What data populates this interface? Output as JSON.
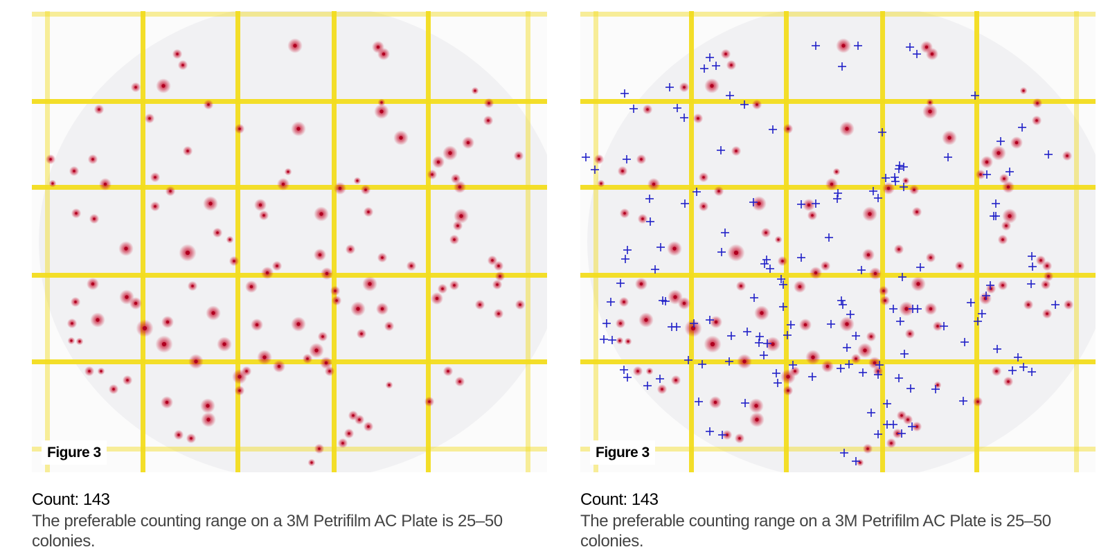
{
  "panels": [
    {
      "figure_label": "Figure 3",
      "count_text": "Count: 143",
      "description": "The preferable counting range on a 3M Petrifilm AC Plate is 25–50 colonies.",
      "markers_shown": false
    },
    {
      "figure_label": "Figure 3",
      "count_text": "Count: 143",
      "description": "The preferable counting range on a 3M Petrifilm AC Plate is 25–50 colonies.",
      "markers_shown": true
    }
  ],
  "colors": {
    "grid": "#f2dc1e",
    "colony": "#c8102e",
    "marker": "#2020c8",
    "plate": "#fbfbfb"
  }
}
